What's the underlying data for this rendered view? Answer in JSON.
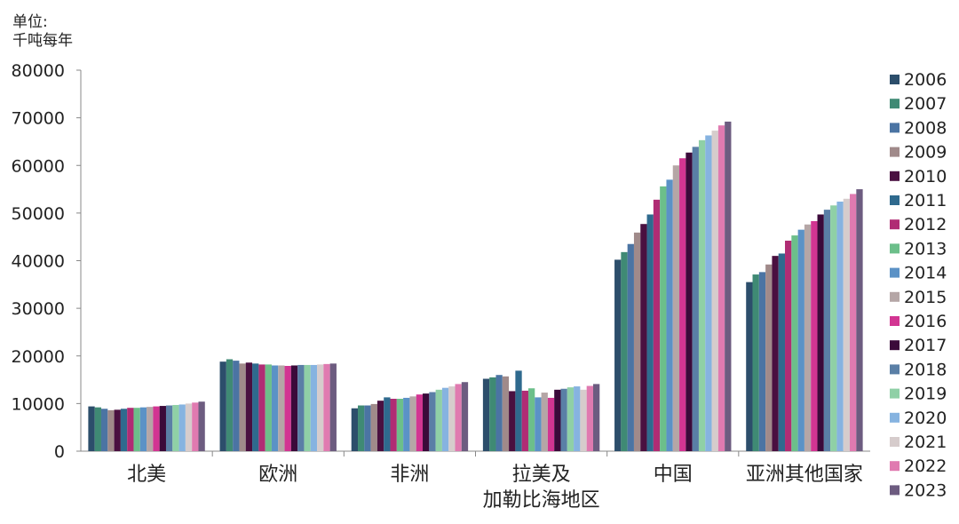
{
  "chart_data": {
    "type": "bar",
    "ylabel_line1": "单位:",
    "ylabel_line2": "千吨每年",
    "ylim": [
      0,
      80000
    ],
    "yticks": [
      0,
      10000,
      20000,
      30000,
      40000,
      50000,
      60000,
      70000,
      80000
    ],
    "grid": false,
    "legend_position": "right",
    "categories": [
      [
        "北美"
      ],
      [
        "欧洲"
      ],
      [
        "非洲"
      ],
      [
        "拉美及",
        "加勒比海地区"
      ],
      [
        "中国"
      ],
      [
        "亚洲其他国家"
      ]
    ],
    "series": [
      {
        "name": "2006",
        "color": "#2c4e6b",
        "values": [
          9400,
          18800,
          9000,
          15200,
          40200,
          35500
        ]
      },
      {
        "name": "2007",
        "color": "#3f8a74",
        "values": [
          9200,
          19300,
          9600,
          15500,
          41800,
          37100
        ]
      },
      {
        "name": "2008",
        "color": "#4b74a3",
        "values": [
          8900,
          19000,
          9600,
          16000,
          43500,
          37600
        ]
      },
      {
        "name": "2009",
        "color": "#a08a8a",
        "values": [
          8600,
          18400,
          9900,
          15700,
          45900,
          39200
        ]
      },
      {
        "name": "2010",
        "color": "#4a1040",
        "values": [
          8700,
          18600,
          10600,
          12600,
          47700,
          41000
        ]
      },
      {
        "name": "2011",
        "color": "#2f6a8e",
        "values": [
          8900,
          18400,
          11300,
          16900,
          49700,
          41500
        ]
      },
      {
        "name": "2012",
        "color": "#b02c74",
        "values": [
          9100,
          18200,
          11000,
          12700,
          52800,
          44200
        ]
      },
      {
        "name": "2013",
        "color": "#6cbf8a",
        "values": [
          9100,
          18200,
          11000,
          13200,
          55600,
          45300
        ]
      },
      {
        "name": "2014",
        "color": "#5b92c6",
        "values": [
          9200,
          18000,
          11200,
          11300,
          57000,
          46500
        ]
      },
      {
        "name": "2015",
        "color": "#b5a6a6",
        "values": [
          9300,
          18000,
          11500,
          12300,
          60000,
          47600
        ]
      },
      {
        "name": "2016",
        "color": "#d23592",
        "values": [
          9400,
          17900,
          11900,
          11200,
          61500,
          48300
        ]
      },
      {
        "name": "2017",
        "color": "#3b0a3a",
        "values": [
          9500,
          18000,
          12100,
          12900,
          62700,
          49700
        ]
      },
      {
        "name": "2018",
        "color": "#5a7fa6",
        "values": [
          9600,
          18100,
          12400,
          13100,
          63900,
          50700
        ]
      },
      {
        "name": "2019",
        "color": "#8fd0a6",
        "values": [
          9700,
          18100,
          12900,
          13400,
          65300,
          51600
        ]
      },
      {
        "name": "2020",
        "color": "#86b3e0",
        "values": [
          9800,
          18100,
          13300,
          13600,
          66300,
          52400
        ]
      },
      {
        "name": "2021",
        "color": "#d6cccc",
        "values": [
          10000,
          18200,
          13600,
          12900,
          67300,
          53000
        ]
      },
      {
        "name": "2022",
        "color": "#e07ab0",
        "values": [
          10200,
          18300,
          14100,
          13700,
          68400,
          54000
        ]
      },
      {
        "name": "2023",
        "color": "#6d5c80",
        "values": [
          10400,
          18400,
          14500,
          14100,
          69200,
          55000
        ]
      }
    ]
  }
}
